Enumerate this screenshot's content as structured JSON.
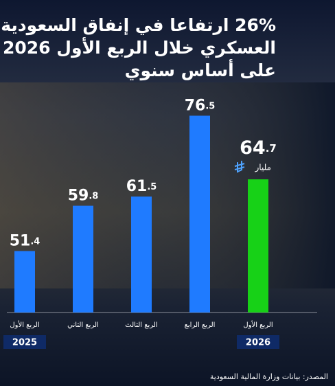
{
  "chart_data": {
    "type": "bar",
    "title": [
      "26% ارتفاعا في إنفاق السعودية",
      "العسكري خلال الربع الأول 2026",
      "على أساس سنوي"
    ],
    "categories": [
      "الربع الأول",
      "الربع الثاني",
      "الربع الثالث",
      "الربع الرابع",
      "الربع الأول"
    ],
    "years": [
      "2025",
      null,
      null,
      null,
      "2026"
    ],
    "values": [
      51.4,
      59.8,
      61.5,
      76.5,
      64.7
    ],
    "colors": [
      "#1f7bff",
      "#1f7bff",
      "#1f7bff",
      "#1f7bff",
      "#17d117"
    ],
    "unit": "مليار",
    "ylim": [
      40,
      80
    ],
    "source": "المصدر: بيانات وزارة المالية السعودية"
  }
}
